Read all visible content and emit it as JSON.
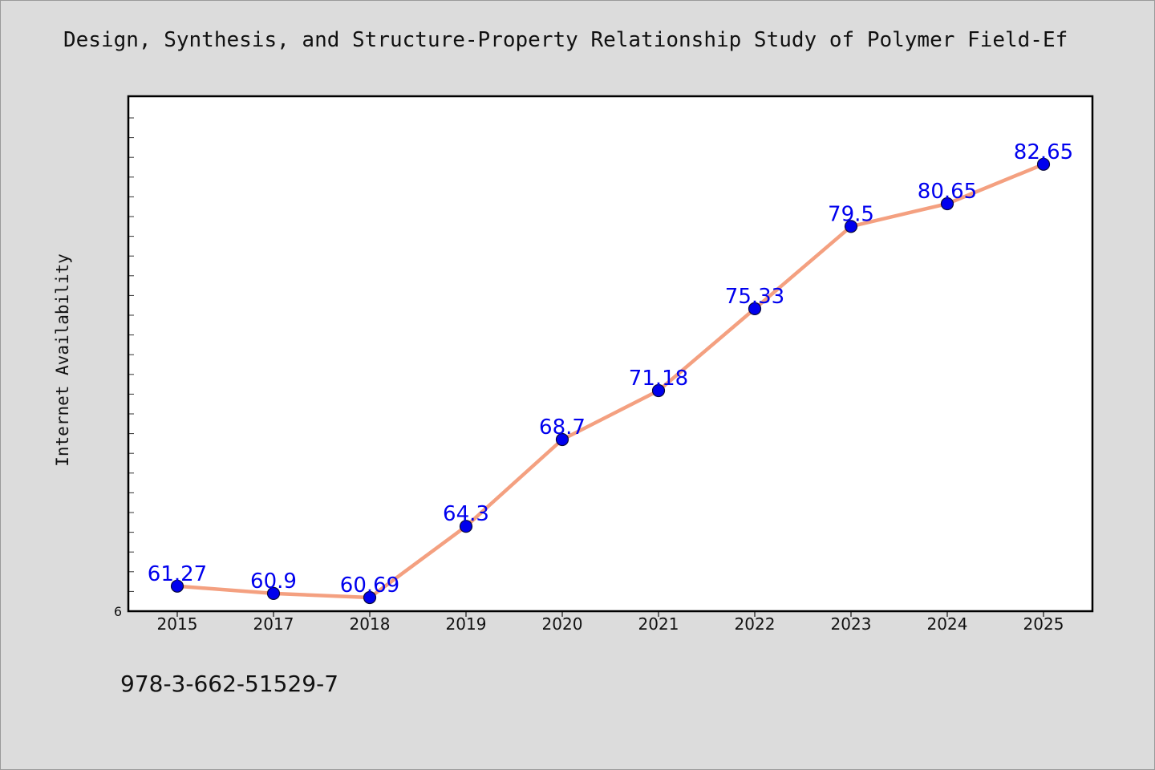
{
  "chart_data": {
    "type": "line",
    "title": "Design, Synthesis, and Structure-Property Relationship Study of Polymer Field-Ef",
    "xlabel": "",
    "ylabel": "Internet Availability",
    "x": [
      "2015",
      "2017",
      "2018",
      "2019",
      "2020",
      "2021",
      "2022",
      "2023",
      "2024",
      "2025"
    ],
    "series": [
      {
        "values": [
          61.27,
          60.9,
          60.69,
          64.3,
          68.7,
          71.18,
          75.33,
          79.5,
          80.65,
          82.65
        ],
        "data_labels": [
          "61.27",
          "60.9",
          "60.69",
          "64.3",
          "68.7",
          "71.18",
          "75.33",
          "79.5",
          "80.65",
          "82.65"
        ]
      }
    ],
    "y_tick_labels": [
      "6"
    ],
    "ylim": [
      60,
      86
    ],
    "grid": false,
    "colors": {
      "line": "#f4a080",
      "marker": "#0000ee",
      "marker_edge": "#0a0a3a",
      "data_label": "#0000ee",
      "plot_background": "#ffffff",
      "page_background": "#dcdcdc"
    }
  },
  "footer_text": "978-3-662-51529-7"
}
